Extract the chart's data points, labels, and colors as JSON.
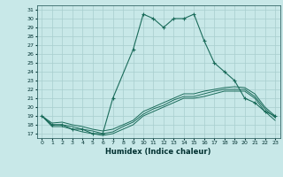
{
  "xlabel": "Humidex (Indice chaleur)",
  "ylabel": "",
  "xlim": [
    -0.5,
    23.5
  ],
  "ylim": [
    16.5,
    31.5
  ],
  "yticks": [
    17,
    18,
    19,
    20,
    21,
    22,
    23,
    24,
    25,
    26,
    27,
    28,
    29,
    30,
    31
  ],
  "xticks": [
    0,
    1,
    2,
    3,
    4,
    5,
    6,
    7,
    8,
    9,
    10,
    11,
    12,
    13,
    14,
    15,
    16,
    17,
    18,
    19,
    20,
    21,
    22,
    23
  ],
  "background_color": "#c8e8e8",
  "grid_color": "#a8cece",
  "line_color": "#1a6b5a",
  "main_line": {
    "x": [
      0,
      1,
      2,
      3,
      4,
      5,
      6,
      7,
      9,
      10,
      11,
      12,
      13,
      14,
      15,
      16,
      17,
      18,
      19,
      20,
      21,
      22,
      23
    ],
    "y": [
      19.0,
      18.0,
      18.0,
      17.5,
      17.5,
      17.0,
      17.0,
      21.0,
      26.5,
      30.5,
      30.0,
      29.0,
      30.0,
      30.0,
      30.5,
      27.5,
      25.0,
      24.0,
      23.0,
      21.0,
      20.5,
      19.5,
      19.0
    ]
  },
  "extra_lines": [
    {
      "x": [
        0,
        1,
        2,
        3,
        4,
        5,
        6,
        7,
        8,
        9,
        10,
        11,
        12,
        13,
        14,
        15,
        16,
        17,
        18,
        19,
        20,
        21,
        22,
        23
      ],
      "y": [
        19.0,
        18.2,
        18.3,
        18.0,
        17.8,
        17.5,
        17.3,
        17.5,
        18.0,
        18.5,
        19.5,
        20.0,
        20.5,
        21.0,
        21.5,
        21.5,
        21.8,
        22.0,
        22.2,
        22.3,
        22.2,
        21.5,
        20.0,
        19.0
      ]
    },
    {
      "x": [
        0,
        1,
        2,
        3,
        4,
        5,
        6,
        7,
        8,
        9,
        10,
        11,
        12,
        13,
        14,
        15,
        16,
        17,
        18,
        19,
        20,
        21,
        22,
        23
      ],
      "y": [
        19.0,
        18.0,
        18.0,
        17.8,
        17.5,
        17.3,
        17.0,
        17.2,
        17.8,
        18.3,
        19.2,
        19.8,
        20.2,
        20.8,
        21.2,
        21.2,
        21.5,
        21.8,
        22.0,
        22.0,
        22.0,
        21.2,
        19.8,
        18.8
      ]
    },
    {
      "x": [
        0,
        1,
        2,
        3,
        4,
        5,
        6,
        7,
        8,
        9,
        10,
        11,
        12,
        13,
        14,
        15,
        16,
        17,
        18,
        19,
        20,
        21,
        22,
        23
      ],
      "y": [
        19.0,
        17.8,
        17.8,
        17.5,
        17.2,
        17.0,
        16.8,
        17.0,
        17.5,
        18.0,
        19.0,
        19.5,
        20.0,
        20.5,
        21.0,
        21.0,
        21.2,
        21.5,
        21.8,
        21.8,
        21.8,
        21.0,
        19.5,
        18.5
      ]
    }
  ]
}
